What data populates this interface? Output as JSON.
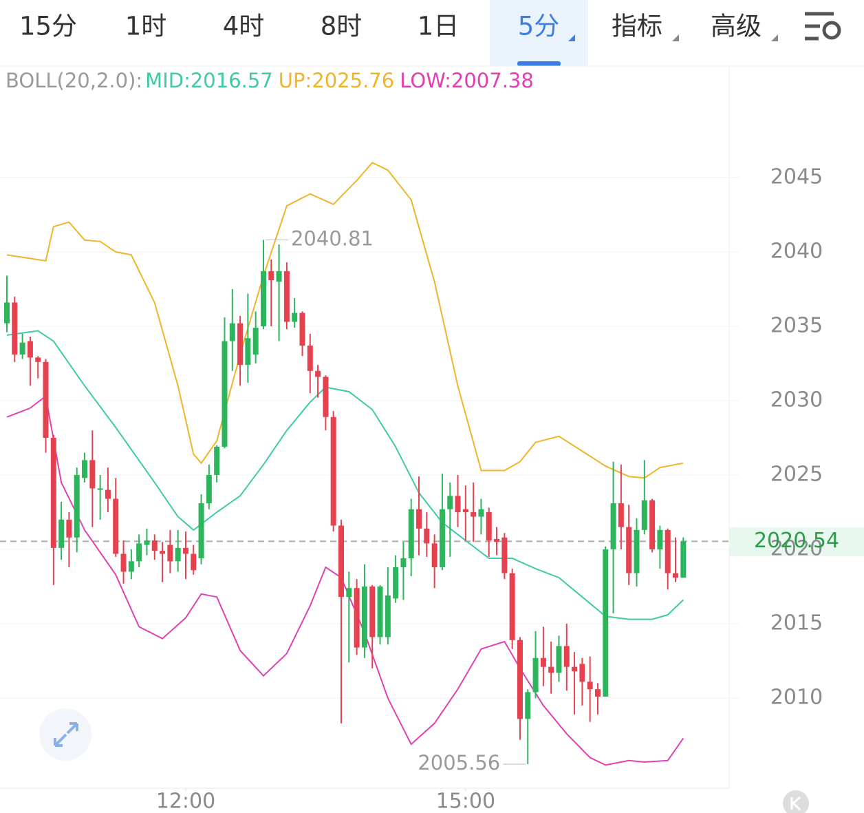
{
  "tabs": [
    {
      "label": "15分",
      "selected": false
    },
    {
      "label": "1时",
      "selected": false
    },
    {
      "label": "4时",
      "selected": false
    },
    {
      "label": "8时",
      "selected": false
    },
    {
      "label": "1日",
      "selected": false
    },
    {
      "label": "5分",
      "selected": true
    },
    {
      "label": "指标",
      "selected": false
    },
    {
      "label": "高级",
      "selected": false
    }
  ],
  "chart_data": {
    "type": "candlestick",
    "indicator_label": "BOLL(20,2.0):",
    "up_color": "#2db55d",
    "down_color": "#e5414f",
    "grid": true,
    "candles": {
      "open": [
        2035.2,
        2036.6,
        2033.1,
        2034,
        2032.9,
        2032.6,
        2027.5,
        2020.1,
        2022,
        2020.8,
        2024.8,
        2026,
        2024,
        2024,
        2023.4,
        2019.7,
        2018.5,
        2019.2,
        2020.3,
        2020.6,
        2019.9,
        2020.3,
        2019.2,
        2020.1,
        2019.7,
        2019.4,
        2023.1,
        2025,
        2026.9,
        2034,
        2035.2,
        2032.4,
        2033.1,
        2035,
        2038.7,
        2038,
        2038.7,
        2035.3,
        2035.9,
        2033.7,
        2032,
        2031.6,
        2028.9,
        2021.6,
        2016.8,
        2017.4,
        2013.4,
        2017.5,
        2014.1,
        2014.1,
        2016.7,
        2018.8,
        2019.4,
        2022.7,
        2021.4,
        2020.4,
        2018.8,
        2022.7,
        2023.6,
        2022.7,
        2022.5,
        2022.2,
        2022.5,
        2020.7,
        2020.8,
        2018.4,
        2013.9,
        2008.6,
        2010.4,
        2012.7,
        2012.1,
        2011.7,
        2013.5,
        2012.1,
        2012.3,
        2011.1,
        2010.6,
        2010.1,
        2020,
        2023.1,
        2021.5,
        2018.4,
        2021.3,
        2023.3,
        2020,
        2021.3,
        2018.4,
        2018.1
      ],
      "high": [
        2038.4,
        2037,
        2034.5,
        2034.3,
        2033,
        2032.8,
        2027.7,
        2023.2,
        2022.5,
        2025.5,
        2026.5,
        2028,
        2025,
        2025.5,
        2024.8,
        2020.6,
        2020,
        2021,
        2021.4,
        2021,
        2020.5,
        2021.3,
        2021.3,
        2021.2,
        2020.3,
        2023.7,
        2025.7,
        2027,
        2035.6,
        2037.5,
        2035.7,
        2037.2,
        2036,
        2040.81,
        2039.5,
        2040.5,
        2039.3,
        2036.9,
        2036,
        2034.5,
        2032.4,
        2031.7,
        2029.3,
        2022,
        2018.5,
        2018,
        2019,
        2017.6,
        2017.6,
        2018.8,
        2019.6,
        2020.5,
        2023.4,
        2024.9,
        2022.5,
        2021,
        2025.1,
        2024.5,
        2025,
        2024.3,
        2024.5,
        2023.4,
        2022.8,
        2021.5,
        2021.1,
        2018.7,
        2014.1,
        2010.6,
        2014.5,
        2014.8,
        2013.8,
        2014.2,
        2015,
        2013.1,
        2012.7,
        2012.8,
        2011,
        2020.2,
        2025.9,
        2025.7,
        2023,
        2022.1,
        2026,
        2023.4,
        2021.6,
        2021.4,
        2020.8,
        2020.8
      ],
      "low": [
        2034.6,
        2032.6,
        2032.8,
        2031,
        2031.5,
        2026.5,
        2017.6,
        2019.3,
        2018.8,
        2019.8,
        2024.5,
        2021.5,
        2022,
        2022.5,
        2019.5,
        2017.7,
        2018,
        2018.8,
        2019.6,
        2019.3,
        2017.8,
        2018.4,
        2018.5,
        2018,
        2018.3,
        2019,
        2022.7,
        2024.5,
        2026.8,
        2032,
        2031,
        2031.2,
        2032.5,
        2034.8,
        2035,
        2034,
        2034.8,
        2034.9,
        2033,
        2030.5,
        2030.2,
        2028,
        2021.2,
        2008.3,
        2012.4,
        2012.9,
        2012.7,
        2012,
        2013.6,
        2013.6,
        2016.4,
        2016.6,
        2018.2,
        2019.6,
        2019.5,
        2017.4,
        2018.6,
        2019.5,
        2021.5,
        2020.6,
        2020.5,
        2021,
        2019.5,
        2019.6,
        2018,
        2013.3,
        2007.2,
        2005.56,
        2010,
        2010.8,
        2010.3,
        2011.1,
        2010.5,
        2008.9,
        2009.5,
        2008.4,
        2008.9,
        2010.1,
        2015.7,
        2020,
        2017.6,
        2017.5,
        2021,
        2019.8,
        2018.7,
        2017.3,
        2017.8,
        2018.1
      ],
      "close": [
        2036.6,
        2033.1,
        2033.9,
        2032.9,
        2032.6,
        2027.5,
        2020.1,
        2022,
        2020.8,
        2025,
        2026,
        2024.1,
        2024.1,
        2023.4,
        2019.7,
        2018.5,
        2019.2,
        2020.4,
        2020.6,
        2019.9,
        2019.7,
        2019.2,
        2020.1,
        2019.7,
        2018.6,
        2023.1,
        2025,
        2026.9,
        2034,
        2035.2,
        2032.4,
        2034.2,
        2034.9,
        2038.7,
        2038.1,
        2038.7,
        2035.3,
        2035.9,
        2033.7,
        2032,
        2031.6,
        2028.9,
        2021.6,
        2016.8,
        2017.4,
        2013.4,
        2017.5,
        2014.1,
        2017.5,
        2016.9,
        2018.8,
        2019.4,
        2022.7,
        2021.4,
        2020.4,
        2018.8,
        2022.7,
        2023.6,
        2022.5,
        2022.5,
        2022.2,
        2022.7,
        2020.6,
        2020.5,
        2018.4,
        2013.9,
        2008.6,
        2010.4,
        2012.7,
        2012.1,
        2011.7,
        2013.5,
        2012.1,
        2011.8,
        2011.1,
        2010.6,
        2010.1,
        2020,
        2023.1,
        2021.5,
        2018.4,
        2021.3,
        2023.3,
        2020,
        2021.3,
        2018.4,
        2018.1,
        2020.54
      ]
    },
    "series": [
      {
        "name": "MID:2016.57",
        "color": "#3ec9a7",
        "x": [
          0,
          4,
          6,
          10,
          14,
          19,
          22,
          24,
          27,
          30,
          33,
          36,
          39,
          41,
          44,
          47,
          50,
          53,
          56,
          59,
          62,
          65,
          68,
          71,
          74,
          77,
          80,
          83,
          85,
          87
        ],
        "values": [
          2034.4,
          2034.7,
          2034,
          2031,
          2028.2,
          2024.5,
          2022.2,
          2021.3,
          2022.5,
          2023.6,
          2025.7,
          2028,
          2029.9,
          2030.9,
          2030.6,
          2029.4,
          2026.9,
          2023.8,
          2021.8,
          2020.6,
          2019.4,
          2019.4,
          2018.7,
          2018.1,
          2016.8,
          2015.5,
          2015.3,
          2015.3,
          2015.6,
          2016.6
        ]
      },
      {
        "name": "UP:2025.76",
        "color": "#f0b429",
        "x": [
          0,
          5,
          6,
          8,
          10,
          12,
          14,
          16,
          19,
          22,
          24,
          25,
          27,
          30,
          33,
          36,
          39,
          42,
          45,
          47,
          49,
          52,
          55,
          58,
          61,
          64,
          66,
          68,
          71,
          74,
          77,
          80,
          82,
          84,
          87
        ],
        "values": [
          2039.8,
          2039.4,
          2041.7,
          2042,
          2040.8,
          2040.7,
          2040,
          2039.8,
          2036.6,
          2031,
          2026.4,
          2025.8,
          2027.3,
          2033.1,
          2038.4,
          2043.1,
          2043.9,
          2043.2,
          2044.8,
          2046,
          2045.5,
          2043.5,
          2038,
          2031,
          2025.3,
          2025.3,
          2025.9,
          2027.2,
          2027.6,
          2026.6,
          2025.6,
          2024.9,
          2024.8,
          2025.5,
          2025.8
        ]
      },
      {
        "name": "LOW:2007.38",
        "color": "#e040b0",
        "x": [
          0,
          3,
          5,
          7,
          10,
          14,
          17,
          20,
          23,
          25,
          27,
          30,
          33,
          36,
          39,
          41,
          43,
          46,
          49,
          52,
          55,
          58,
          61,
          64,
          66,
          69,
          72,
          75,
          77,
          80,
          82,
          85,
          87
        ],
        "values": [
          2028.9,
          2029.5,
          2030.3,
          2024.5,
          2021.3,
          2018.3,
          2014.8,
          2014,
          2015.4,
          2017,
          2016.8,
          2013.2,
          2011.5,
          2013,
          2016.2,
          2018.8,
          2018.1,
          2014.4,
          2010,
          2006.9,
          2008.3,
          2010.6,
          2013.3,
          2013.8,
          2012,
          2009.5,
          2007.6,
          2006,
          2005.5,
          2005.8,
          2005.7,
          2005.8,
          2007.3
        ]
      }
    ],
    "ylim": [
      2003.94,
      2052.31
    ],
    "yticks": [
      2010,
      2015,
      2020,
      2025,
      2030,
      2035,
      2040,
      2045
    ],
    "xlim": [
      -0.885,
      92.9
    ],
    "xticks": [
      {
        "value": 23,
        "label": "12:00"
      },
      {
        "value": 59,
        "label": "15:00"
      }
    ],
    "current_price": 2020.54,
    "max_label": 2040.81,
    "min_label": 2005.56
  }
}
